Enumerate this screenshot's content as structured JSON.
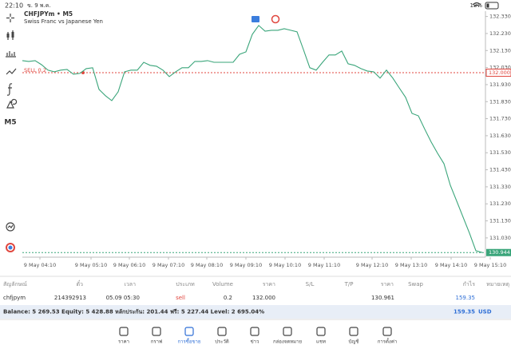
{
  "status_bar": {
    "time": "22:10",
    "date": "ข. 9 พ.ค.",
    "battery": "18%"
  },
  "sidebar": {
    "timeframe": "M5"
  },
  "chart_data": {
    "type": "line",
    "title": "CHFJPYm • M5",
    "subtitle": "Swiss Franc vs Japanese Yen",
    "x_tick_labels": [
      "9 May 04:10",
      "9 May 05:10",
      "9 May 06:10",
      "9 May 07:10",
      "9 May 08:10",
      "9 May 09:10",
      "9 May 10:10",
      "9 May 11:10",
      "9 May 12:10",
      "9 May 13:10",
      "9 May 14:10",
      "9 May 15:10"
    ],
    "series": [
      {
        "color": "#3aa57a",
        "values": [
          132.071,
          132.066,
          132.071,
          132.047,
          132.015,
          132.005,
          132.015,
          132.019,
          131.991,
          131.996,
          132.024,
          132.029,
          131.902,
          131.865,
          131.836,
          131.888,
          132.005,
          132.015,
          132.015,
          132.061,
          132.043,
          132.038,
          132.015,
          131.977,
          132.005,
          132.029,
          132.029,
          132.066,
          132.066,
          132.071,
          132.061,
          132.061,
          132.061,
          132.061,
          132.108,
          132.122,
          132.225,
          132.277,
          132.244,
          132.249,
          132.249,
          132.258,
          132.249,
          132.24,
          132.136,
          132.029,
          132.015,
          132.061,
          132.104,
          132.104,
          132.127,
          132.052,
          132.043,
          132.024,
          132.01,
          132.005,
          131.968,
          132.015,
          131.968,
          131.911,
          131.855,
          131.761,
          131.747,
          131.668,
          131.593,
          131.527,
          131.466,
          131.339,
          131.246,
          131.152,
          131.058,
          130.955,
          130.944
        ]
      }
    ],
    "ylim": [
      130.917,
      132.361
    ],
    "yticks": [
      {
        "value": 132.33,
        "label": "132.330"
      },
      {
        "value": 132.23,
        "label": "132.230"
      },
      {
        "value": 132.13,
        "label": "132.130"
      },
      {
        "value": 132.03,
        "label": "132.030"
      },
      {
        "value": 131.93,
        "label": "131.930"
      },
      {
        "value": 131.83,
        "label": "131.830"
      },
      {
        "value": 131.73,
        "label": "131.730"
      },
      {
        "value": 131.63,
        "label": "131.630"
      },
      {
        "value": 131.53,
        "label": "131.530"
      },
      {
        "value": 131.43,
        "label": "131.430"
      },
      {
        "value": 131.33,
        "label": "131.330"
      },
      {
        "value": 131.23,
        "label": "131.230"
      },
      {
        "value": 131.13,
        "label": "131.130"
      },
      {
        "value": 131.03,
        "label": "131.030"
      }
    ],
    "price_lines": [
      {
        "name": "SELL 0.2",
        "color": "#e0463e",
        "value": {
          "value": 132,
          "label": "132.000"
        }
      },
      {
        "color": "#3aa57a",
        "value": {
          "value": 130.944,
          "label": "130.944"
        }
      }
    ]
  },
  "positions": {
    "headers": [
      "สัญลักษณ์",
      "ตั๋ว",
      "เวลา",
      "ประเภท",
      "Volume",
      "ราคา",
      "S/L",
      "T/P",
      "ราคา",
      "Swap",
      "กำไร",
      "หมายเหตุ"
    ],
    "row": {
      "symbol": "chfjpym",
      "ticket": "214392913",
      "time": "05.09 05:30",
      "type": "sell",
      "volume": "0.2",
      "open_price": "132.000",
      "price": "130.961",
      "profit": "159.35"
    },
    "summary": "Balance: 5 269.53 Equity: 5 428.88 หลักประกัน: 201.44 ฟรี: 5 227.44 Level: 2 695.04%",
    "total": "159.35",
    "currency": "USD"
  },
  "tabs": [
    "ราคา",
    "กราฟ",
    "การซื้อขาย",
    "ประวัติ",
    "ข่าว",
    "กล่องจดหมาย",
    "แชท",
    "บัญชี",
    "การตั้งค่า"
  ]
}
